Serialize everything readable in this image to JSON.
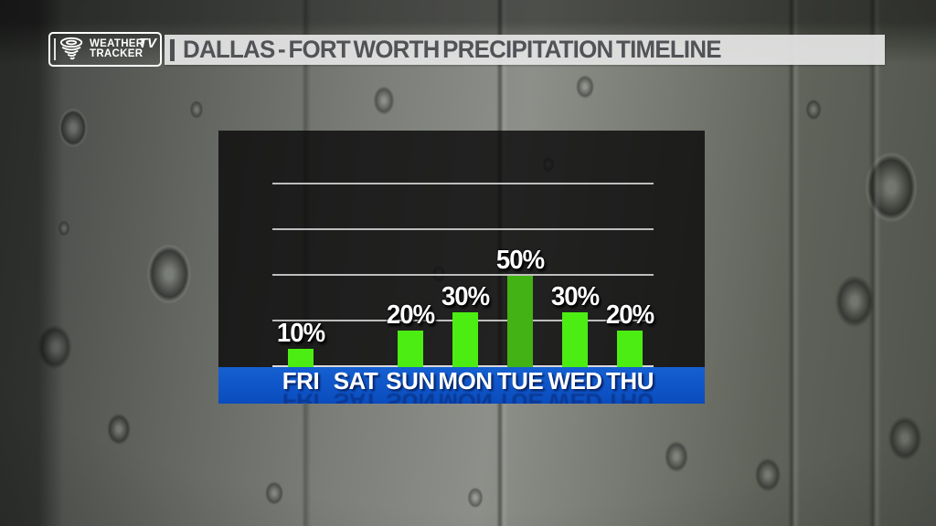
{
  "header": {
    "logo": {
      "line1": "WEATHER",
      "line2": "TRACKER",
      "badge": "TV"
    },
    "title": "DALLAS - FORT WORTH PRECIPITATION TIMELINE"
  },
  "chart_data": {
    "type": "bar",
    "title": "DALLAS - FORT WORTH PRECIPITATION TIMELINE",
    "categories": [
      "FRI",
      "SAT",
      "SUN",
      "MON",
      "TUE",
      "WED",
      "THU"
    ],
    "values": [
      10,
      0,
      20,
      30,
      50,
      30,
      20
    ],
    "value_labels": [
      "10%",
      "",
      "20%",
      "30%",
      "50%",
      "30%",
      "20%"
    ],
    "xlabel": "",
    "ylabel": "",
    "ylim": [
      0,
      100
    ],
    "gridlines": [
      25,
      50,
      75,
      100
    ],
    "grid": true,
    "legend": false,
    "bar_color": "#4ced12",
    "highlight_bar_color": "#42b214",
    "highlight_index": 4,
    "axis_band_top_color": "#1560d2",
    "axis_band_bottom_color": "#0a4cbe",
    "label_color": "#ffffff",
    "gridline_color": "#d9dad9",
    "panel_color": "rgba(10,10,10,0.82)"
  },
  "colors": {
    "logo_blue": "#2b50d6",
    "banner_bg": "#e2e3e2",
    "title_text": "#525356"
  }
}
